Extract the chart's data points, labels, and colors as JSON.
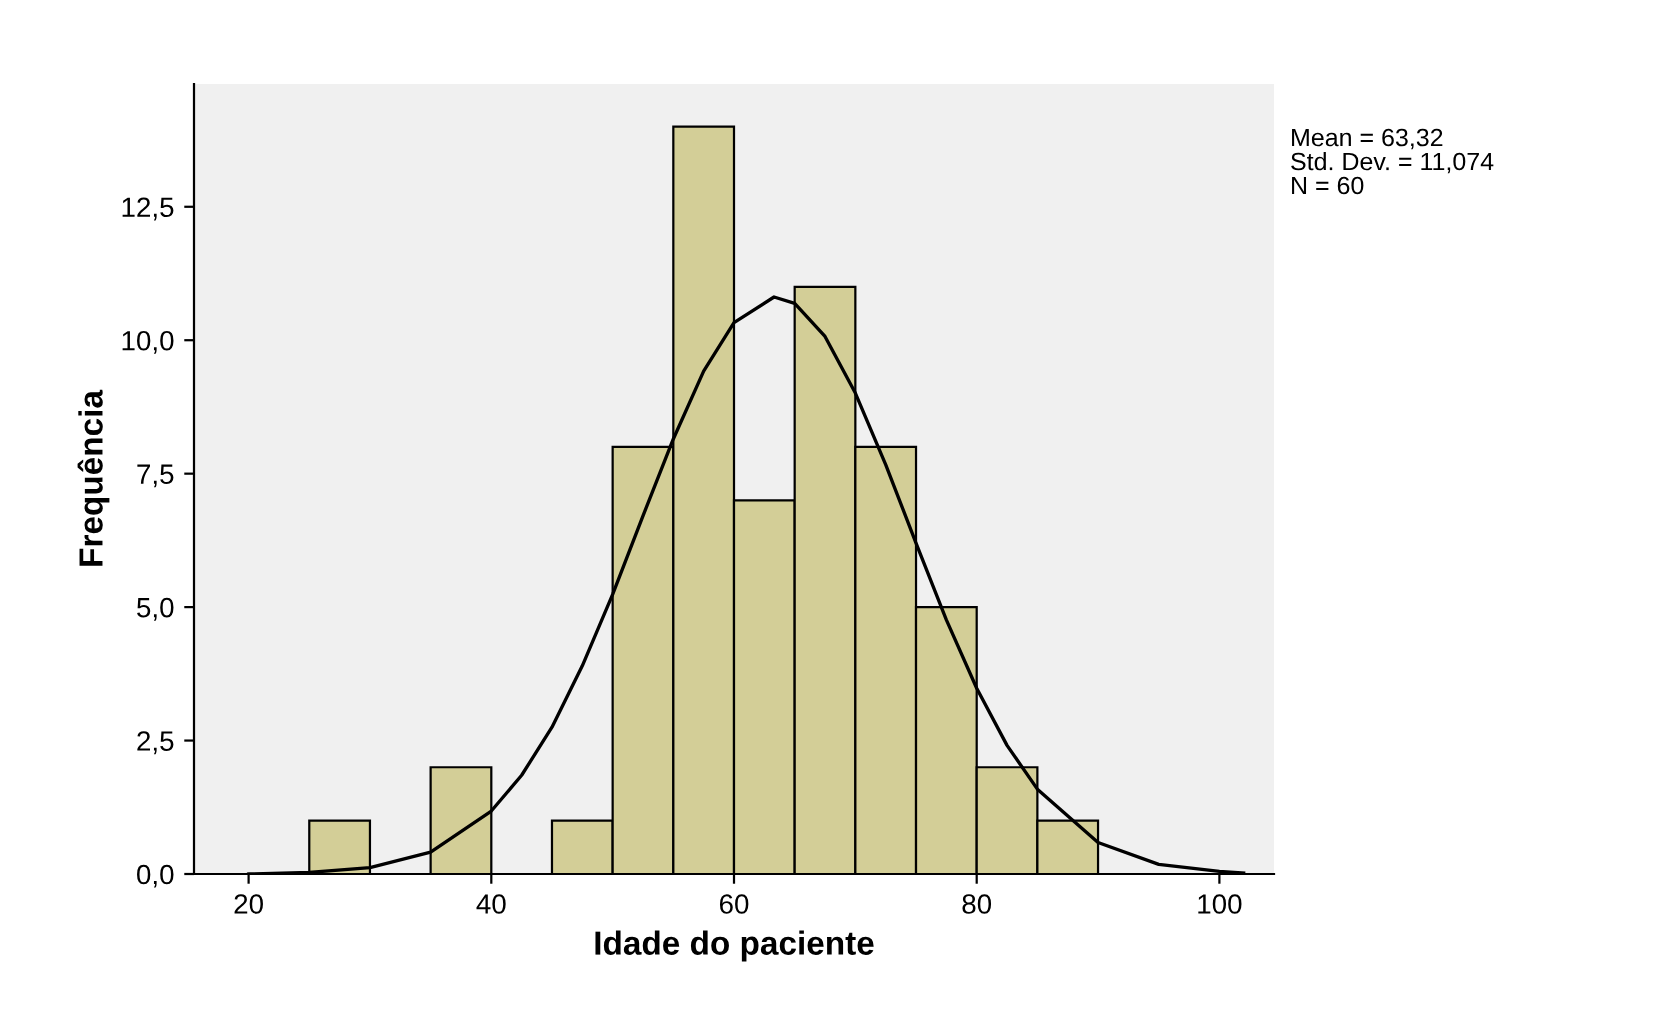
{
  "chart_data": {
    "type": "histogram",
    "xlabel": "Idade do paciente",
    "ylabel": "Frequência",
    "bins": [
      25,
      30,
      35,
      40,
      45,
      50,
      55,
      60,
      65,
      70,
      75,
      80,
      85,
      90
    ],
    "values": [
      1,
      0,
      2,
      0,
      1,
      8,
      14,
      7,
      11,
      8,
      5,
      2,
      1
    ],
    "color": "#d3ce97",
    "series": [
      {
        "type": "line",
        "color": "#000000",
        "x": [
          20,
          25,
          30,
          35,
          40,
          42.5,
          45,
          47.5,
          50,
          52.5,
          55,
          57.5,
          60,
          63.3,
          65,
          67.5,
          70,
          72.5,
          75,
          77.5,
          80,
          82.5,
          85,
          90,
          95,
          100,
          102
        ],
        "values": [
          0.0,
          0.03,
          0.12,
          0.41,
          1.18,
          1.85,
          2.75,
          3.9,
          5.24,
          6.71,
          8.15,
          9.42,
          10.33,
          10.81,
          10.69,
          10.07,
          9.01,
          7.67,
          6.2,
          4.76,
          3.48,
          2.41,
          1.59,
          0.59,
          0.18,
          0.05,
          0.02
        ]
      }
    ],
    "xlim": [
      15.5,
      104.5
    ],
    "xticks": [
      20,
      40,
      60,
      80,
      100
    ],
    "ylim": [
      0,
      14.8
    ],
    "yticks": [
      {
        "value": 0,
        "label": "0,0"
      },
      {
        "value": 2.5,
        "label": "2,5"
      },
      {
        "value": 5,
        "label": "5,0"
      },
      {
        "value": 7.5,
        "label": "7,5"
      },
      {
        "value": 10,
        "label": "10,0"
      },
      {
        "value": 12.5,
        "label": "12,5"
      }
    ],
    "grid": false,
    "annotations": [
      "Mean = 63,32",
      "Std. Dev. = 11,074",
      "N = 60"
    ]
  }
}
